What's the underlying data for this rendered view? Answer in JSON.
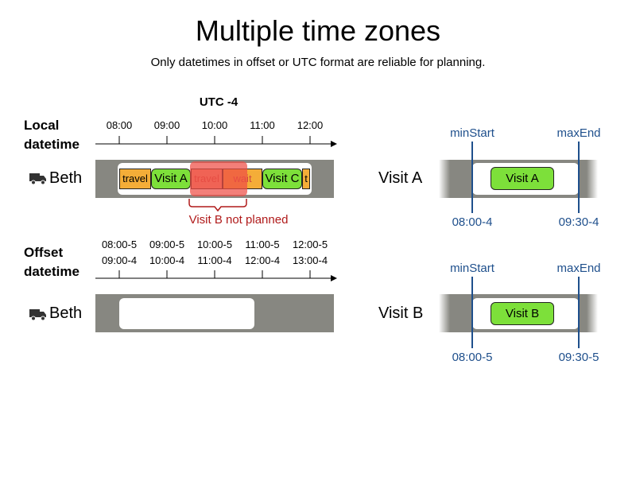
{
  "title": "Multiple time zones",
  "subtitle": "Only datetimes in offset or UTC format are reliable for planning.",
  "zone_label": "UTC -4",
  "colors": {
    "lane": "#878781",
    "travel": "#f4ad38",
    "visit": "#7de03a",
    "failed_overlay": "#ee4d45",
    "error": "#b01a1a",
    "marker": "#1e4f8c"
  },
  "local": {
    "axis_title_line1": "Local",
    "axis_title_line2": "datetime",
    "ticks": [
      "08:00",
      "09:00",
      "10:00",
      "11:00",
      "12:00"
    ],
    "vehicle": "Beth",
    "vehicle_icon": "truck-icon",
    "events": {
      "travel1": "travel",
      "visit_a": "Visit A",
      "travel2": "travel",
      "wait": "wait",
      "visit_c": "Visit C",
      "travel3": "t"
    },
    "error_label": "Visit B not planned"
  },
  "offset": {
    "axis_title_line1": "Offset",
    "axis_title_line2": "datetime",
    "ticks_row1": [
      "08:00-5",
      "09:00-5",
      "10:00-5",
      "11:00-5",
      "12:00-5"
    ],
    "ticks_row2": [
      "09:00-4",
      "10:00-4",
      "11:00-4",
      "12:00-4",
      "13:00-4"
    ],
    "vehicle": "Beth",
    "vehicle_icon": "truck-icon"
  },
  "visit_a_window": {
    "label": "Visit A",
    "visit": "Visit A",
    "min_label": "minStart",
    "max_label": "maxEnd",
    "min_value": "08:00-4",
    "max_value": "09:30-4"
  },
  "visit_b_window": {
    "label": "Visit B",
    "visit": "Visit B",
    "min_label": "minStart",
    "max_label": "maxEnd",
    "min_value": "08:00-5",
    "max_value": "09:30-5"
  }
}
